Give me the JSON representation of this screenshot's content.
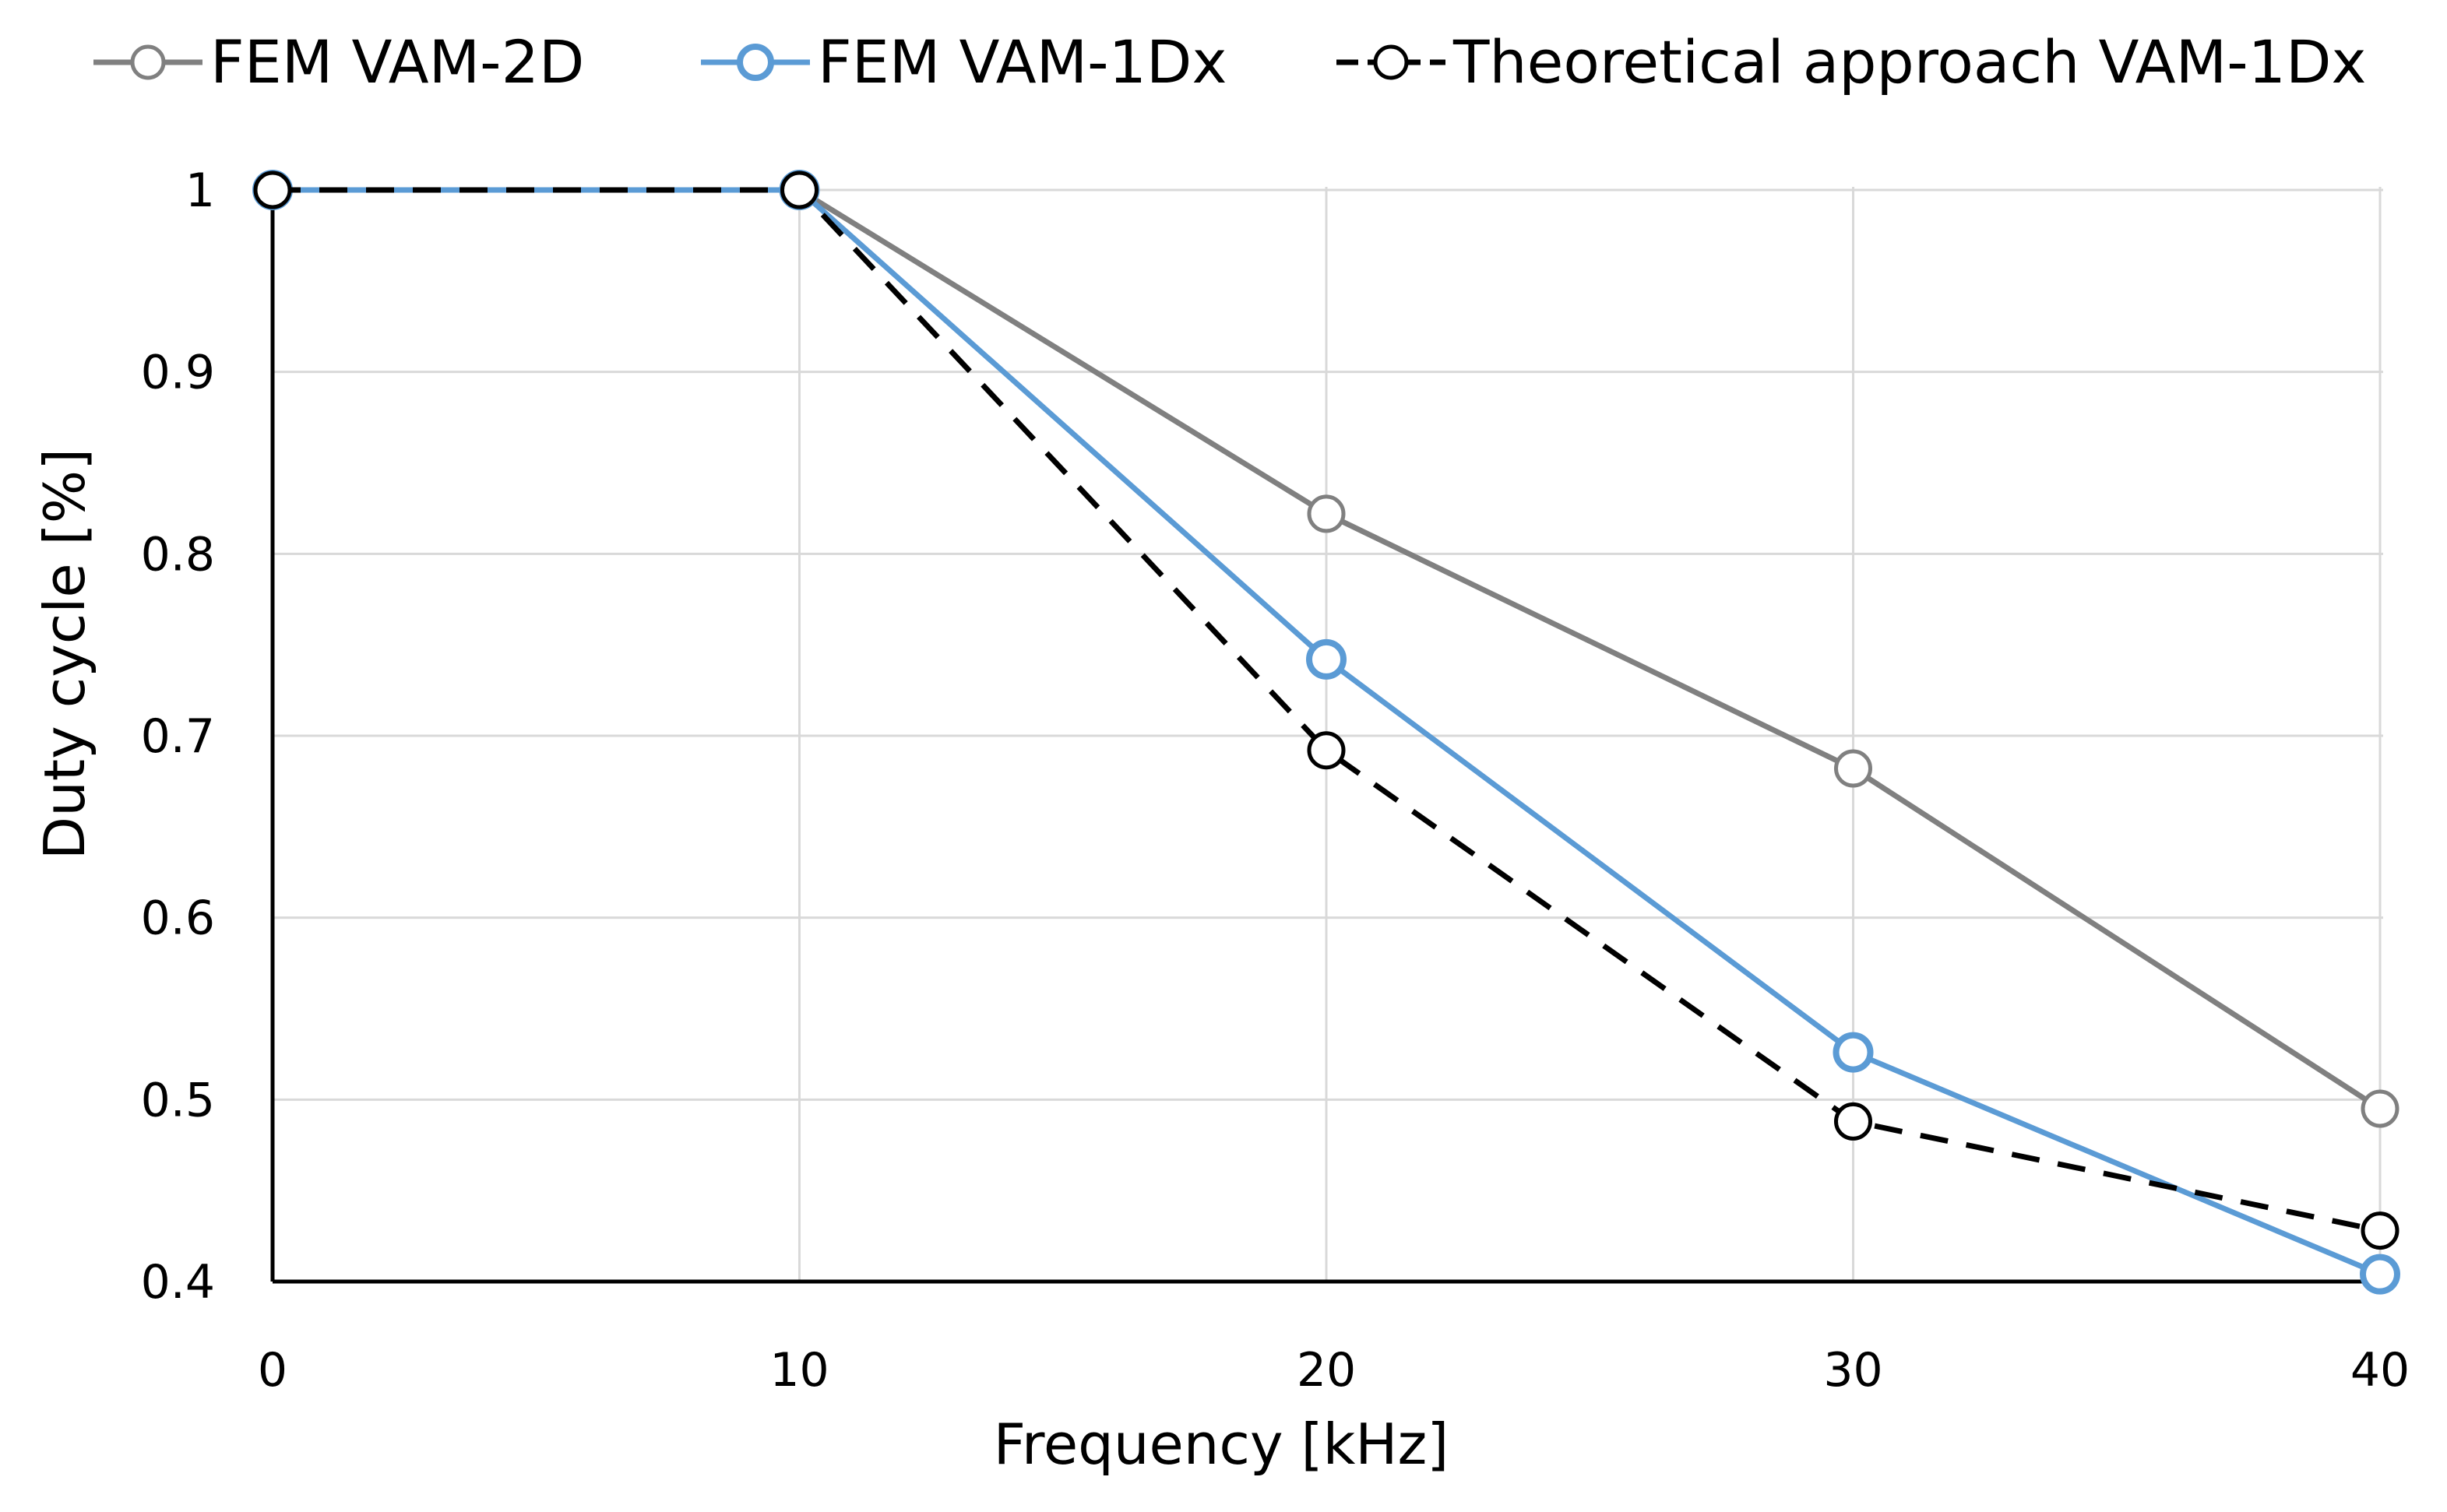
{
  "chart_data": {
    "type": "line",
    "title": "",
    "xlabel": "Frequency [kHz]",
    "ylabel": "Duty cycle [%]",
    "x": [
      0,
      10,
      20,
      30,
      40
    ],
    "x_ticks": [
      "0",
      "10",
      "20",
      "30",
      "40"
    ],
    "y_ticks": [
      "0.4",
      "0.5",
      "0.6",
      "0.7",
      "0.8",
      "0.9",
      "1"
    ],
    "xlim": [
      0,
      40
    ],
    "ylim": [
      0.4,
      1.0
    ],
    "grid": true,
    "legend_position": "top",
    "series": [
      {
        "name": "FEM VAM-2D",
        "values": [
          1.0,
          1.0,
          0.822,
          0.682,
          0.495
        ],
        "color": "#808080",
        "dashed": false
      },
      {
        "name": "FEM VAM-1Dx",
        "values": [
          1.0,
          1.0,
          0.742,
          0.526,
          0.404
        ],
        "color": "#5B9BD5",
        "dashed": false
      },
      {
        "name": "Theoretical approach VAM-1Dx",
        "values": [
          1.0,
          1.0,
          0.692,
          0.488,
          0.428
        ],
        "color": "#000000",
        "dashed": true
      }
    ]
  }
}
